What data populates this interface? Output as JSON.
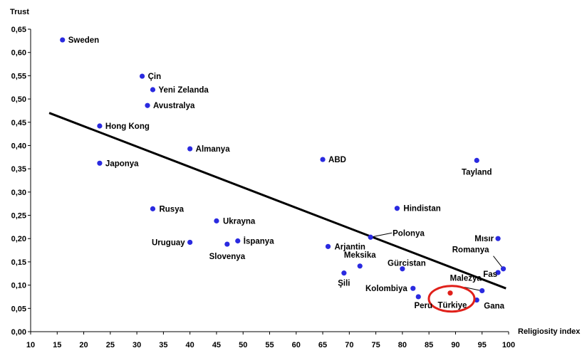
{
  "chart_data": {
    "type": "scatter",
    "ylabel": "Trust",
    "xlabel": "Religiosity index",
    "xlim": [
      10,
      100
    ],
    "ylim": [
      0,
      0.65
    ],
    "xticks": [
      "10",
      "15",
      "20",
      "25",
      "30",
      "35",
      "40",
      "45",
      "50",
      "55",
      "60",
      "65",
      "70",
      "75",
      "80",
      "85",
      "90",
      "95",
      "100"
    ],
    "yticks": [
      "0,00",
      "0,05",
      "0,10",
      "0,15",
      "0,20",
      "0,25",
      "0,30",
      "0,35",
      "0,40",
      "0,45",
      "0,50",
      "0,55",
      "0,60",
      "0,65"
    ],
    "grid": false,
    "point_color": "#2a2ae0",
    "highlight_color": "#e0201a",
    "trendline": {
      "x": [
        13.5,
        99.5
      ],
      "y": [
        0.47,
        0.093
      ],
      "color": "#000000"
    },
    "points": [
      {
        "label": "Sweden",
        "x": 16,
        "y": 0.627
      },
      {
        "label": "Çin",
        "x": 31,
        "y": 0.549
      },
      {
        "label": "Yeni Zelanda",
        "x": 33,
        "y": 0.52
      },
      {
        "label": "Avustralya",
        "x": 32,
        "y": 0.486
      },
      {
        "label": "Hong Kong",
        "x": 23,
        "y": 0.442
      },
      {
        "label": "Almanya",
        "x": 40,
        "y": 0.393
      },
      {
        "label": "Japonya",
        "x": 23,
        "y": 0.362
      },
      {
        "label": "ABD",
        "x": 65,
        "y": 0.37
      },
      {
        "label": "Tayland",
        "x": 94,
        "y": 0.368
      },
      {
        "label": "Rusya",
        "x": 33,
        "y": 0.264
      },
      {
        "label": "Hindistan",
        "x": 79,
        "y": 0.265
      },
      {
        "label": "Ukrayna",
        "x": 45,
        "y": 0.238
      },
      {
        "label": "Polonya",
        "x": 74,
        "y": 0.203
      },
      {
        "label": "Mısır",
        "x": 98,
        "y": 0.2
      },
      {
        "label": "Uruguay",
        "x": 40,
        "y": 0.192
      },
      {
        "label": "İspanya",
        "x": 49,
        "y": 0.195
      },
      {
        "label": "Slovenya",
        "x": 47,
        "y": 0.188
      },
      {
        "label": "Arjantin",
        "x": 66,
        "y": 0.183
      },
      {
        "label": "Romanya",
        "x": 99,
        "y": 0.135
      },
      {
        "label": "Meksika",
        "x": 72,
        "y": 0.141
      },
      {
        "label": "Gürcistan",
        "x": 80,
        "y": 0.135
      },
      {
        "label": "Fas",
        "x": 98,
        "y": 0.127
      },
      {
        "label": "Şili",
        "x": 69,
        "y": 0.126
      },
      {
        "label": "Malezya",
        "x": 95,
        "y": 0.088
      },
      {
        "label": "Kolombiya",
        "x": 82,
        "y": 0.093
      },
      {
        "label": "Peru",
        "x": 83,
        "y": 0.075
      },
      {
        "label": "Gana",
        "x": 94,
        "y": 0.068
      },
      {
        "label": "Türkiye",
        "x": 89,
        "y": 0.083,
        "highlight": true
      }
    ]
  }
}
